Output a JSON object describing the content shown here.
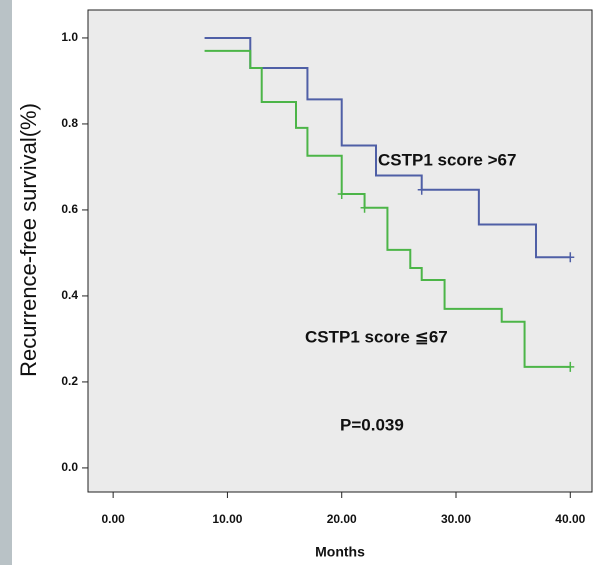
{
  "chart_data": {
    "type": "step",
    "y_label": "Recurrence-free survival(%)",
    "x_label": "Months",
    "annotations": [
      "CSTP1 score >67",
      "CSTP1 score ≦67",
      "P=0.039"
    ],
    "xlim": [
      -2.2,
      41.9
    ],
    "ylim": [
      -0.056,
      1.065
    ],
    "xticks": [
      {
        "value": 0,
        "label": "0.00"
      },
      {
        "value": 10,
        "label": "10.00"
      },
      {
        "value": 20,
        "label": "20.00"
      },
      {
        "value": 30,
        "label": "30.00"
      },
      {
        "value": 40,
        "label": "40.00"
      }
    ],
    "yticks": [
      {
        "value": 0,
        "label": "0.0"
      },
      0.2,
      0.4,
      0.6,
      0.8,
      {
        "value": 1,
        "label": "1.0"
      }
    ],
    "series": [
      {
        "color": "#4f5fa6",
        "x": [
          8,
          12,
          17,
          20,
          23,
          27,
          32,
          37,
          40
        ],
        "values": [
          1.0,
          0.93,
          0.857,
          0.75,
          0.68,
          0.647,
          0.566,
          0.49,
          0.49
        ],
        "censored_x": [
          27,
          40
        ],
        "censored_values": [
          0.647,
          0.49
        ]
      },
      {
        "color": "#4cb548",
        "x": [
          8,
          12,
          13,
          16,
          17,
          20,
          22,
          24,
          26,
          27,
          29,
          34,
          36,
          40
        ],
        "values": [
          0.97,
          0.93,
          0.851,
          0.791,
          0.726,
          0.637,
          0.605,
          0.507,
          0.465,
          0.437,
          0.37,
          0.34,
          0.235,
          0.235
        ],
        "censored_x": [
          20,
          22,
          40
        ],
        "censored_values": [
          0.637,
          0.605,
          0.235
        ]
      }
    ]
  }
}
